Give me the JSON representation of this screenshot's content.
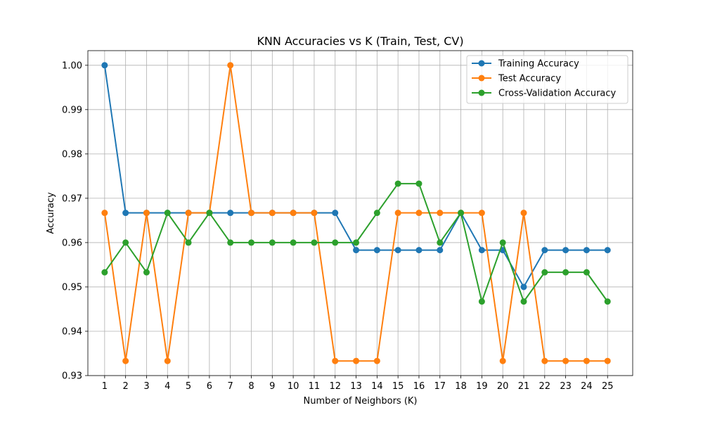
{
  "chart_data": {
    "type": "line",
    "title": "KNN Accuracies vs K (Train, Test, CV)",
    "xlabel": "Number of Neighbors (K)",
    "ylabel": "Accuracy",
    "x": [
      1,
      2,
      3,
      4,
      5,
      6,
      7,
      8,
      9,
      10,
      11,
      12,
      13,
      14,
      15,
      16,
      17,
      18,
      19,
      20,
      21,
      22,
      23,
      24,
      25
    ],
    "xlim": [
      0.2,
      26.2
    ],
    "ylim": [
      0.93,
      1.0033
    ],
    "yticks": [
      "0.93",
      "0.94",
      "0.95",
      "0.96",
      "0.97",
      "0.98",
      "0.99",
      "1.00"
    ],
    "grid": true,
    "legend_position": "top-right",
    "series": [
      {
        "name": "Training Accuracy",
        "color": "#1f77b4",
        "marker": "circle",
        "values": [
          1.0,
          0.9667,
          0.9667,
          0.9667,
          0.9667,
          0.9667,
          0.9667,
          0.9667,
          0.9667,
          0.9667,
          0.9667,
          0.9667,
          0.9583,
          0.9583,
          0.9583,
          0.9583,
          0.9583,
          0.9667,
          0.9583,
          0.9583,
          0.95,
          0.9583,
          0.9583,
          0.9583,
          0.9583
        ]
      },
      {
        "name": "Test Accuracy",
        "color": "#ff7f0e",
        "marker": "circle",
        "values": [
          0.9667,
          0.9333,
          0.9667,
          0.9333,
          0.9667,
          0.9667,
          1.0,
          0.9667,
          0.9667,
          0.9667,
          0.9667,
          0.9333,
          0.9333,
          0.9333,
          0.9667,
          0.9667,
          0.9667,
          0.9667,
          0.9667,
          0.9333,
          0.9667,
          0.9333,
          0.9333,
          0.9333,
          0.9333
        ]
      },
      {
        "name": "Cross-Validation Accuracy",
        "color": "#2ca02c",
        "marker": "circle",
        "values": [
          0.9533,
          0.96,
          0.9533,
          0.9667,
          0.96,
          0.9667,
          0.96,
          0.96,
          0.96,
          0.96,
          0.96,
          0.96,
          0.96,
          0.9667,
          0.9733,
          0.9733,
          0.96,
          0.9667,
          0.9467,
          0.96,
          0.9467,
          0.9533,
          0.9533,
          0.9533,
          0.9467
        ]
      }
    ]
  }
}
